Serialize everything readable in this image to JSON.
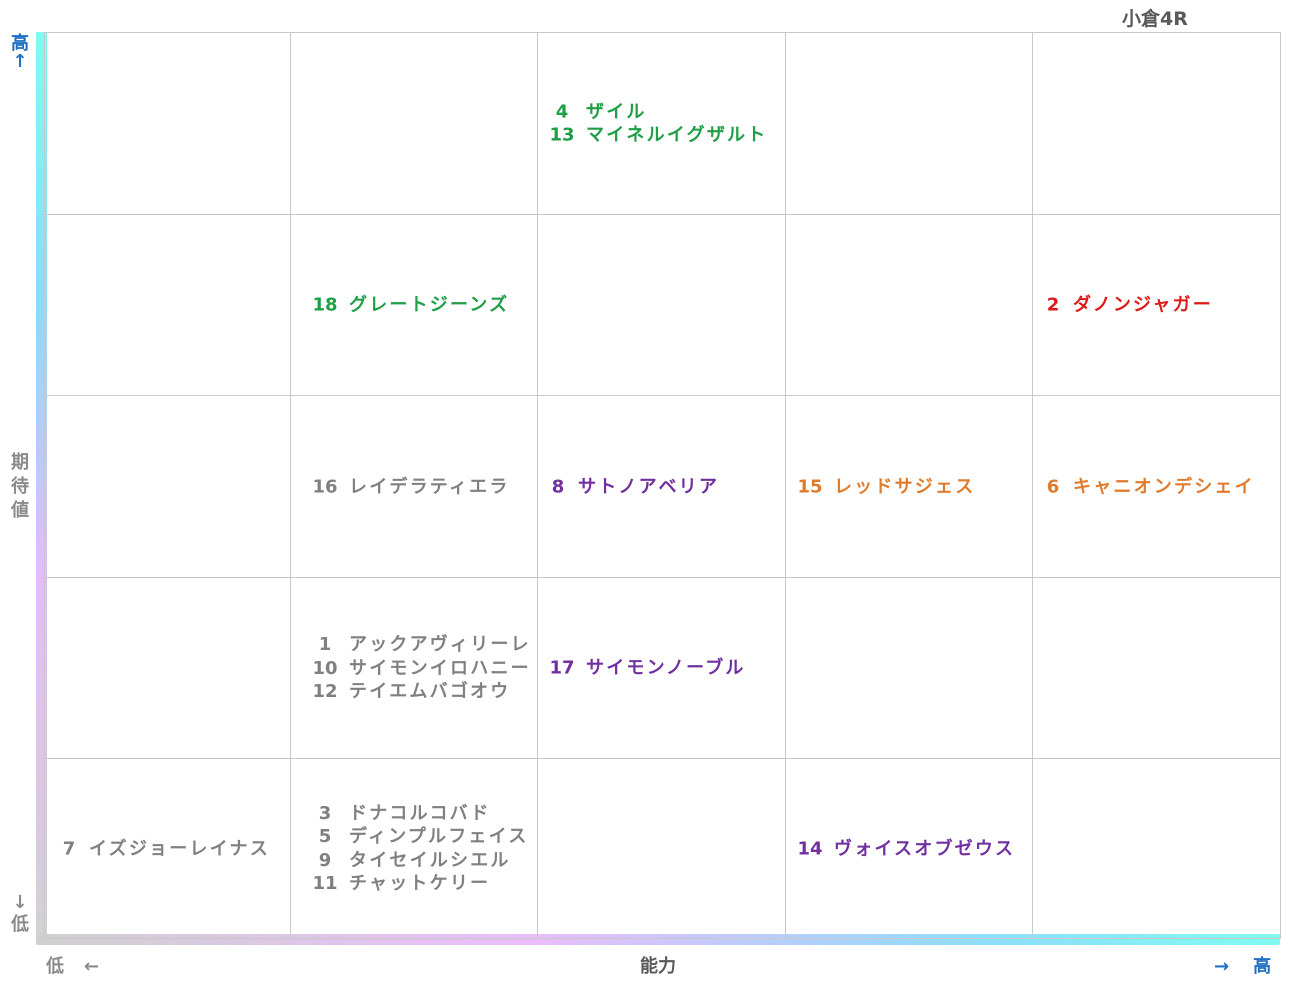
{
  "title": "小倉4R",
  "axes": {
    "y_label": "期待値",
    "y_label_chars": [
      "期",
      "待",
      "値"
    ],
    "y_high": "高",
    "y_high_arrow": "↑",
    "y_low_arrow": "↓",
    "y_low": "低",
    "x_label": "能力",
    "x_low": "低",
    "x_low_arrow": "←",
    "x_high_arrow": "→",
    "x_high": "高"
  },
  "colors": {
    "green": "#1f9e45",
    "red": "#e01818",
    "orange": "#e07b2c",
    "purple": "#7030a0",
    "gray": "#808080",
    "blue_axis": "#1f6fc5"
  },
  "cells": [
    {
      "row": 0,
      "col": 2,
      "entries": [
        {
          "num": "4",
          "name": "ザイル",
          "color": "green"
        },
        {
          "num": "13",
          "name": "マイネルイグザルト",
          "color": "green"
        }
      ]
    },
    {
      "row": 1,
      "col": 1,
      "entries": [
        {
          "num": "18",
          "name": "グレートジーンズ",
          "color": "green"
        }
      ]
    },
    {
      "row": 1,
      "col": 4,
      "entries": [
        {
          "num": "2",
          "name": "ダノンジャガー",
          "color": "red"
        }
      ]
    },
    {
      "row": 2,
      "col": 1,
      "entries": [
        {
          "num": "16",
          "name": "レイデラティエラ",
          "color": "gray"
        }
      ]
    },
    {
      "row": 2,
      "col": 2,
      "entries": [
        {
          "num": "8",
          "name": "サトノアベリア",
          "color": "purple"
        }
      ]
    },
    {
      "row": 2,
      "col": 3,
      "entries": [
        {
          "num": "15",
          "name": "レッドサジェス",
          "color": "orange"
        }
      ]
    },
    {
      "row": 2,
      "col": 4,
      "entries": [
        {
          "num": "6",
          "name": "キャニオンデシェイ",
          "color": "orange"
        }
      ]
    },
    {
      "row": 3,
      "col": 1,
      "entries": [
        {
          "num": "1",
          "name": "アックアヴィリーレ",
          "color": "gray"
        },
        {
          "num": "10",
          "name": "サイモンイロハニー",
          "color": "gray"
        },
        {
          "num": "12",
          "name": "テイエムバゴオウ",
          "color": "gray"
        }
      ]
    },
    {
      "row": 3,
      "col": 2,
      "entries": [
        {
          "num": "17",
          "name": "サイモンノーブル",
          "color": "purple"
        }
      ]
    },
    {
      "row": 4,
      "col": 0,
      "entries": [
        {
          "num": "7",
          "name": "イズジョーレイナス",
          "color": "gray"
        }
      ]
    },
    {
      "row": 4,
      "col": 1,
      "entries": [
        {
          "num": "3",
          "name": "ドナコルコバド",
          "color": "gray"
        },
        {
          "num": "5",
          "name": "ディンプルフェイス",
          "color": "gray"
        },
        {
          "num": "9",
          "name": "タイセイルシエル",
          "color": "gray"
        },
        {
          "num": "11",
          "name": "チャットケリー",
          "color": "gray"
        }
      ]
    },
    {
      "row": 4,
      "col": 3,
      "entries": [
        {
          "num": "14",
          "name": "ヴォイスオブゼウス",
          "color": "purple"
        }
      ]
    }
  ]
}
